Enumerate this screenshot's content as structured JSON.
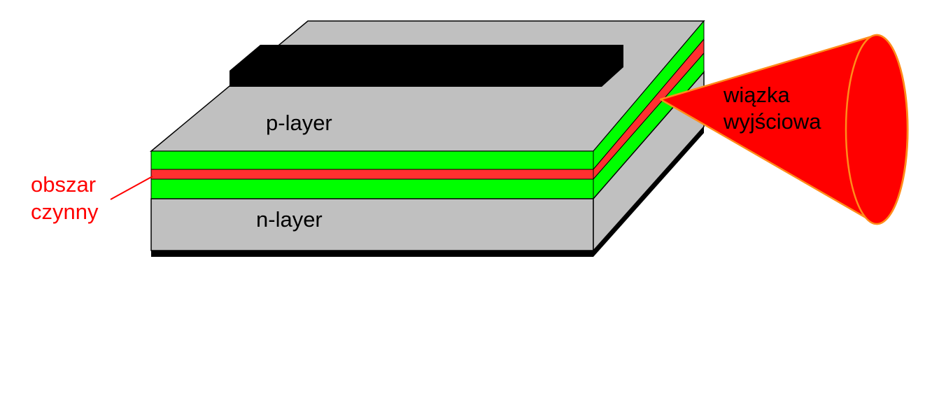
{
  "labels": {
    "p_layer": "p-layer",
    "n_layer": "n-layer",
    "active_region": [
      "obszar",
      "czynny"
    ],
    "output_beam": [
      "wiązka",
      "wyjściowa"
    ]
  },
  "colors": {
    "background": "#ffffff",
    "layer_gray": "#c0c0c0",
    "cladding_green": "#00ff00",
    "active_red": "#ff3030",
    "beam_red": "#ff0000",
    "beam_outline": "#ff8c1a",
    "contact_black": "#000000",
    "active_label": "#ff0000",
    "text": "#000000"
  }
}
